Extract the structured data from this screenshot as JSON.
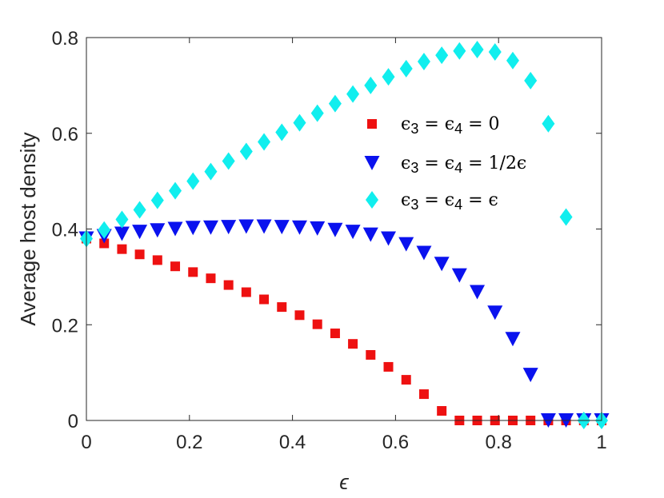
{
  "chart_data": {
    "type": "scatter",
    "title": "",
    "xlabel": "ϵ",
    "ylabel": "Average host density",
    "xlim": [
      0,
      1
    ],
    "ylim": [
      0,
      0.8
    ],
    "xticks": [
      0,
      0.2,
      0.4,
      0.6,
      0.8,
      1
    ],
    "xtick_labels": [
      "0",
      "0.2",
      "0.4",
      "0.6",
      "0.8",
      "1"
    ],
    "yticks": [
      0,
      0.2,
      0.4,
      0.6,
      0.8
    ],
    "ytick_labels": [
      "0",
      "0.2",
      "0.4",
      "0.6",
      "0.8"
    ],
    "grid": false,
    "legend_position": "upper-right",
    "x": [
      0,
      0.0345,
      0.069,
      0.1034,
      0.1379,
      0.1724,
      0.2069,
      0.2414,
      0.2759,
      0.3103,
      0.3448,
      0.3793,
      0.4138,
      0.4483,
      0.4828,
      0.5172,
      0.5517,
      0.5862,
      0.6207,
      0.6552,
      0.6897,
      0.7241,
      0.7586,
      0.7931,
      0.8276,
      0.8621,
      0.8966,
      0.931,
      0.9655,
      1.0
    ],
    "series": [
      {
        "name": "ϵ3 = ϵ4 = 0",
        "label_parts": [
          "ϵ",
          "3",
          " = ϵ",
          "4",
          " = 0"
        ],
        "marker": "square",
        "color": "#ee1111",
        "values": [
          0.38,
          0.37,
          0.358,
          0.347,
          0.335,
          0.322,
          0.31,
          0.297,
          0.283,
          0.268,
          0.253,
          0.237,
          0.22,
          0.201,
          0.182,
          0.16,
          0.137,
          0.112,
          0.085,
          0.055,
          0.02,
          0.0,
          0.0,
          0.0,
          0.0,
          0.0,
          0.0,
          0.0,
          0.0,
          0.0
        ]
      },
      {
        "name": "ϵ3 = ϵ4 = 1/2ϵ",
        "label_parts": [
          "ϵ",
          "3",
          " = ϵ",
          "4",
          " = 1/2ϵ"
        ],
        "marker": "triangle-down",
        "color": "#0a12ee",
        "values": [
          0.38,
          0.385,
          0.39,
          0.394,
          0.397,
          0.4,
          0.402,
          0.403,
          0.404,
          0.405,
          0.405,
          0.404,
          0.403,
          0.401,
          0.398,
          0.394,
          0.388,
          0.38,
          0.368,
          0.35,
          0.327,
          0.303,
          0.268,
          0.225,
          0.17,
          0.095,
          0.0,
          0.0,
          0.0,
          0.0
        ]
      },
      {
        "name": "ϵ3 = ϵ4 = ϵ",
        "label_parts": [
          "ϵ",
          "3",
          " = ϵ",
          "4",
          " = ϵ"
        ],
        "marker": "diamond",
        "color": "#11eeee",
        "values": [
          0.38,
          0.398,
          0.42,
          0.44,
          0.46,
          0.48,
          0.5,
          0.52,
          0.542,
          0.562,
          0.582,
          0.602,
          0.622,
          0.642,
          0.662,
          0.682,
          0.7,
          0.718,
          0.735,
          0.75,
          0.763,
          0.772,
          0.775,
          0.77,
          0.752,
          0.71,
          0.62,
          0.425,
          0.0,
          0.0
        ]
      }
    ]
  }
}
